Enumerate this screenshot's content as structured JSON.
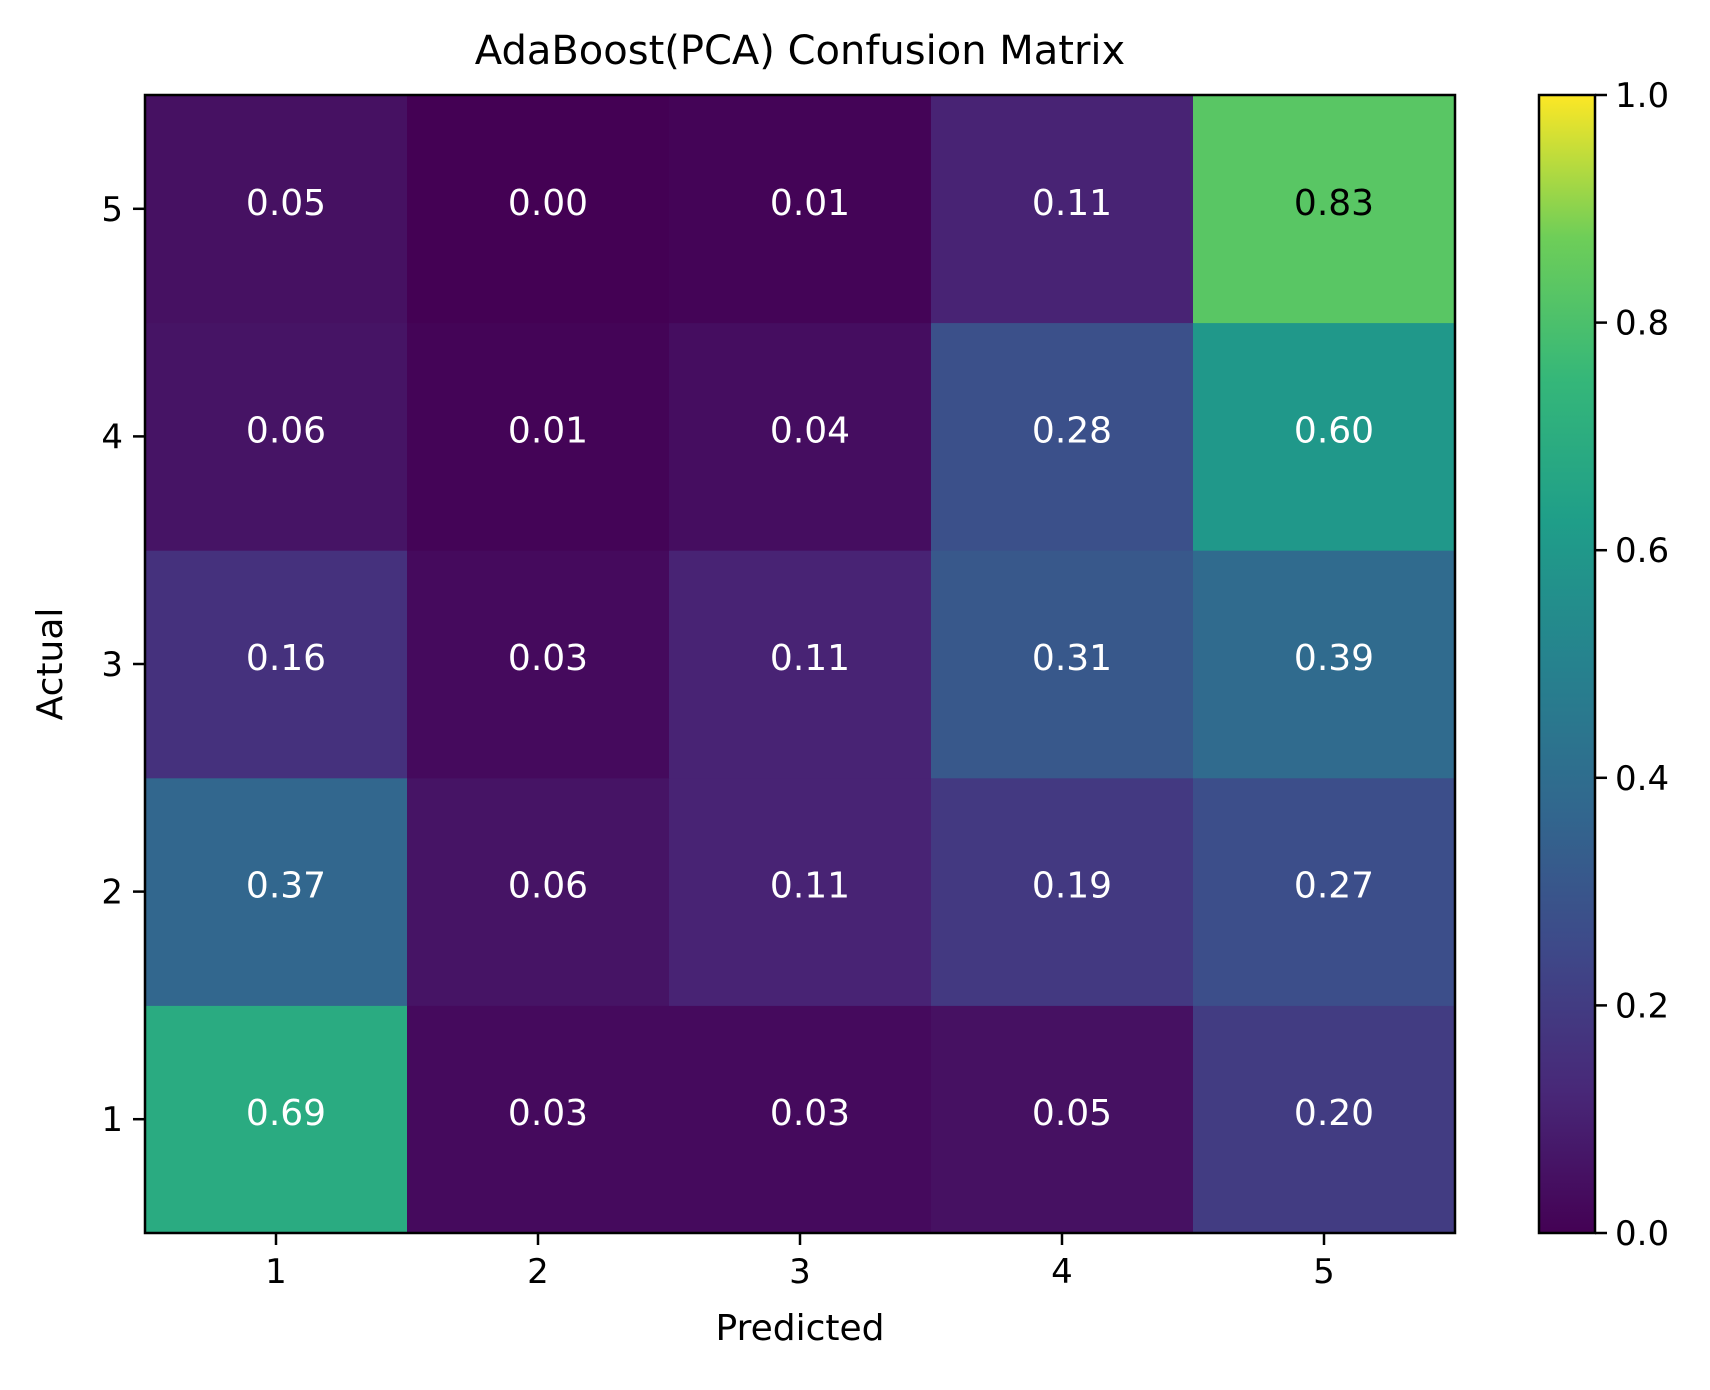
{
  "chart_data": {
    "type": "heatmap",
    "title": "AdaBoost(PCA) Confusion Matrix",
    "xlabel": "Predicted",
    "ylabel": "Actual",
    "x_categories": [
      "1",
      "2",
      "3",
      "4",
      "5"
    ],
    "y_categories": [
      "1",
      "2",
      "3",
      "4",
      "5"
    ],
    "rows": [
      {
        "actual": "1",
        "values": [
          0.69,
          0.03,
          0.03,
          0.05,
          0.2
        ]
      },
      {
        "actual": "2",
        "values": [
          0.37,
          0.06,
          0.11,
          0.19,
          0.27
        ]
      },
      {
        "actual": "3",
        "values": [
          0.16,
          0.03,
          0.11,
          0.31,
          0.39
        ]
      },
      {
        "actual": "4",
        "values": [
          0.06,
          0.01,
          0.04,
          0.28,
          0.6
        ]
      },
      {
        "actual": "5",
        "values": [
          0.05,
          0.0,
          0.01,
          0.11,
          0.83
        ]
      }
    ],
    "cell_labels": [
      [
        "0.69",
        "0.03",
        "0.03",
        "0.05",
        "0.20"
      ],
      [
        "0.37",
        "0.06",
        "0.11",
        "0.19",
        "0.27"
      ],
      [
        "0.16",
        "0.03",
        "0.11",
        "0.31",
        "0.39"
      ],
      [
        "0.06",
        "0.01",
        "0.04",
        "0.28",
        "0.60"
      ],
      [
        "0.05",
        "0.00",
        "0.01",
        "0.11",
        "0.83"
      ]
    ],
    "y_axis_origin": "bottom",
    "color_scale": {
      "colormap": "viridis",
      "min": 0.0,
      "max": 1.0,
      "ticks": [
        0.0,
        0.2,
        0.4,
        0.6,
        0.8,
        1.0
      ],
      "tick_labels": [
        "0.0",
        "0.2",
        "0.4",
        "0.6",
        "0.8",
        "1.0"
      ]
    },
    "legend": "colorbar-right",
    "grid": false
  }
}
